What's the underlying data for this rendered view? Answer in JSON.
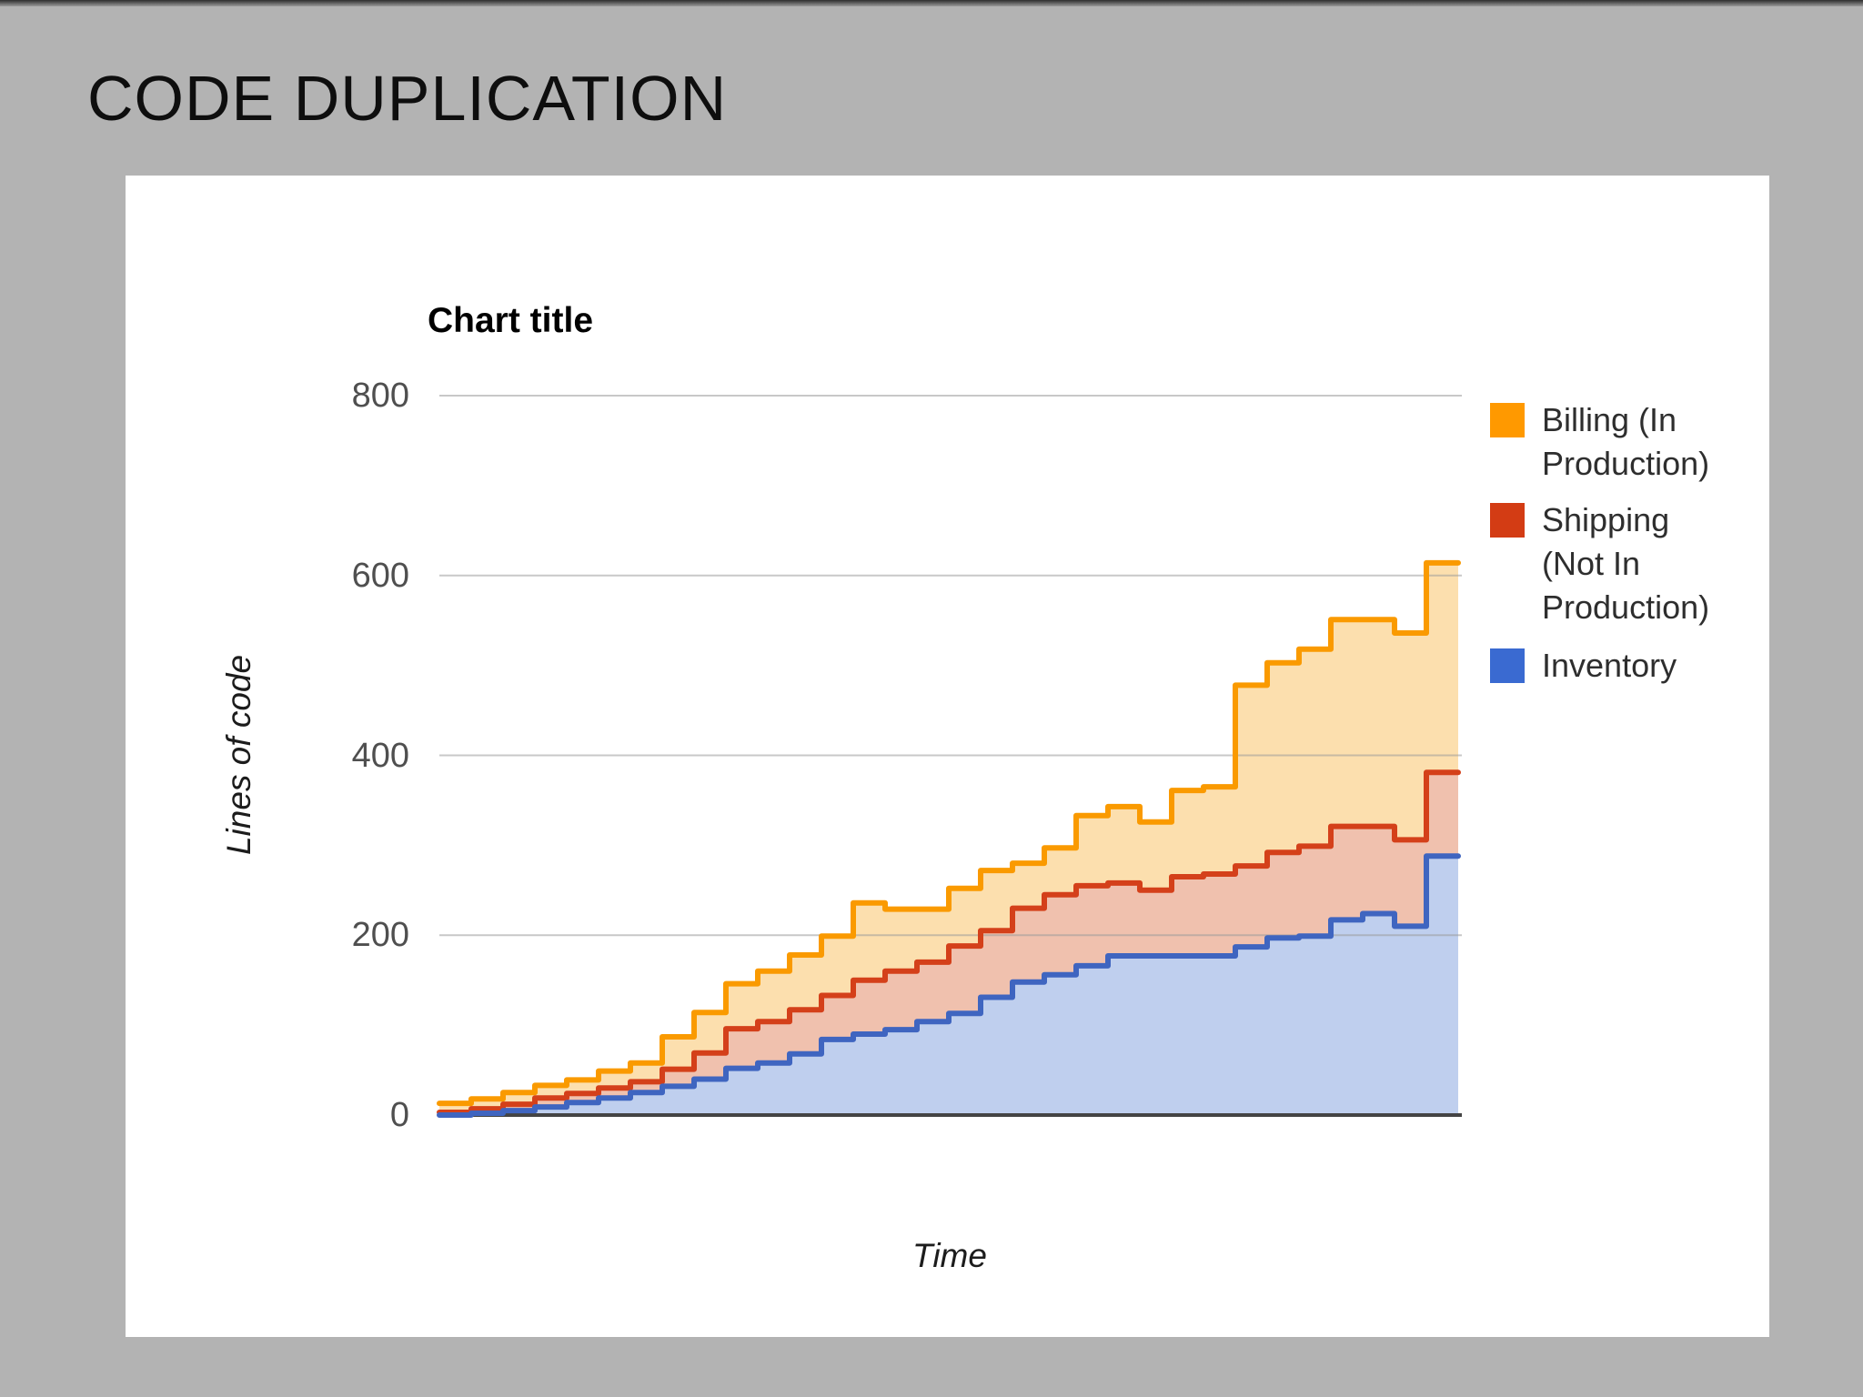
{
  "slide": {
    "title": "CODE DUPLICATION"
  },
  "chart": {
    "title": "Chart title",
    "y_axis": {
      "label": "Lines of code",
      "ticks": [
        "800",
        "600",
        "400",
        "200",
        "0"
      ]
    },
    "x_axis": {
      "label": "Time"
    }
  },
  "chart_data": {
    "type": "stepped-area",
    "title": "Chart title",
    "xlabel": "Time",
    "ylabel": "Lines of code",
    "ylim": [
      0,
      800
    ],
    "y_gridlines": [
      0,
      200,
      400,
      600,
      800
    ],
    "x_axis_note": "time steps, no tick labels shown",
    "n_steps": 32,
    "grid": "horizontal-only",
    "legend_position": "right",
    "background": "#ffffff",
    "slide_background": "#b3b3b3",
    "series": [
      {
        "name": "Billing (In Production)",
        "color": "#fa9a00",
        "fill": "#fcdfae",
        "legend_color": "#ff9900",
        "values": [
          13,
          18,
          25,
          33,
          39,
          49,
          58,
          87,
          114,
          146,
          160,
          178,
          199,
          236,
          229,
          229,
          252,
          272,
          280,
          297,
          333,
          343,
          326,
          361,
          365,
          478,
          503,
          518,
          551,
          551,
          536,
          614
        ]
      },
      {
        "name": "Shipping (Not In Production)",
        "color": "#d4401a",
        "fill": "#f0c1ae",
        "legend_color": "#d33c14",
        "values": [
          3,
          7,
          12,
          19,
          24,
          30,
          37,
          51,
          69,
          96,
          104,
          117,
          133,
          150,
          160,
          170,
          188,
          205,
          230,
          245,
          255,
          258,
          250,
          265,
          268,
          277,
          292,
          299,
          321,
          321,
          306,
          381
        ]
      },
      {
        "name": "Inventory",
        "color": "#3f65c0",
        "fill": "#bfcfee",
        "legend_color": "#3a6ad1",
        "values": [
          0,
          2,
          5,
          9,
          14,
          19,
          25,
          32,
          40,
          52,
          58,
          68,
          84,
          90,
          95,
          104,
          113,
          131,
          148,
          156,
          166,
          177,
          177,
          177,
          177,
          187,
          197,
          199,
          217,
          224,
          210,
          288
        ]
      }
    ]
  }
}
